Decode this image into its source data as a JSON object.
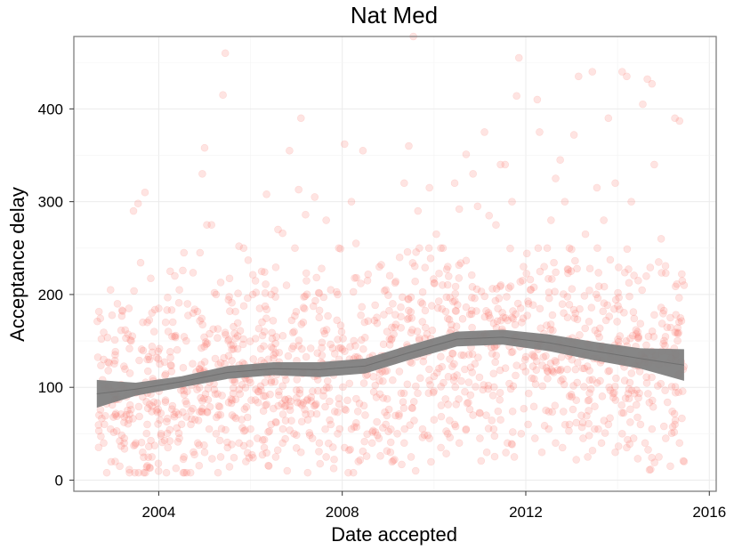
{
  "chart_data": {
    "type": "scatter",
    "title": "Nat Med",
    "xlabel": "Date accepted",
    "ylabel": "Acceptance delay",
    "xlim": [
      2002.15,
      2016.15
    ],
    "ylim": [
      -12,
      478
    ],
    "x_ticks": [
      2004,
      2008,
      2012,
      2016
    ],
    "y_ticks": [
      0,
      100,
      200,
      300,
      400
    ],
    "grid": true,
    "point_color": "#f8766d",
    "point_opacity": 0.2,
    "smooth_color": "#808080",
    "points": [
      [
        2002.75,
        152
      ],
      [
        2002.8,
        130
      ],
      [
        2002.9,
        118
      ],
      [
        2002.95,
        205
      ],
      [
        2003.05,
        135
      ],
      [
        2003.1,
        190
      ],
      [
        2003.2,
        183
      ],
      [
        2003.3,
        90
      ],
      [
        2003.35,
        185
      ],
      [
        2003.4,
        150
      ],
      [
        2003.45,
        290
      ],
      [
        2003.55,
        298
      ],
      [
        2003.7,
        310
      ],
      [
        2003.75,
        170
      ],
      [
        2003.8,
        130
      ],
      [
        2003.9,
        160
      ],
      [
        2004.0,
        185
      ],
      [
        2004.15,
        170
      ],
      [
        2004.25,
        225
      ],
      [
        2004.35,
        220
      ],
      [
        2004.45,
        205
      ],
      [
        2004.55,
        245
      ],
      [
        2004.6,
        150
      ],
      [
        2004.75,
        180
      ],
      [
        2004.9,
        245
      ],
      [
        2004.95,
        330
      ],
      [
        2005.0,
        358
      ],
      [
        2005.05,
        275
      ],
      [
        2005.15,
        275
      ],
      [
        2005.25,
        200
      ],
      [
        2005.35,
        213
      ],
      [
        2005.4,
        415
      ],
      [
        2005.45,
        460
      ],
      [
        2005.55,
        182
      ],
      [
        2005.65,
        158
      ],
      [
        2005.75,
        252
      ],
      [
        2005.85,
        250
      ],
      [
        2005.95,
        237
      ],
      [
        2006.05,
        200
      ],
      [
        2006.2,
        185
      ],
      [
        2006.35,
        308
      ],
      [
        2006.45,
        200
      ],
      [
        2006.6,
        270
      ],
      [
        2006.7,
        266
      ],
      [
        2006.85,
        355
      ],
      [
        2006.95,
        160
      ],
      [
        2007.05,
        313
      ],
      [
        2007.1,
        390
      ],
      [
        2007.2,
        286
      ],
      [
        2007.4,
        305
      ],
      [
        2007.55,
        228
      ],
      [
        2007.65,
        280
      ],
      [
        2007.75,
        205
      ],
      [
        2007.9,
        200
      ],
      [
        2008.05,
        362
      ],
      [
        2008.2,
        300
      ],
      [
        2008.3,
        255
      ],
      [
        2008.45,
        355
      ],
      [
        2008.55,
        215
      ],
      [
        2008.7,
        172
      ],
      [
        2008.85,
        232
      ],
      [
        2008.95,
        205
      ],
      [
        2009.1,
        190
      ],
      [
        2009.25,
        240
      ],
      [
        2009.35,
        320
      ],
      [
        2009.45,
        360
      ],
      [
        2009.55,
        478
      ],
      [
        2009.65,
        290
      ],
      [
        2009.75,
        190
      ],
      [
        2009.9,
        315
      ],
      [
        2010.05,
        265
      ],
      [
        2010.15,
        250
      ],
      [
        2010.3,
        230
      ],
      [
        2010.45,
        320
      ],
      [
        2010.55,
        292
      ],
      [
        2010.7,
        351
      ],
      [
        2010.85,
        330
      ],
      [
        2010.95,
        295
      ],
      [
        2011.1,
        375
      ],
      [
        2011.2,
        285
      ],
      [
        2011.35,
        275
      ],
      [
        2011.45,
        340
      ],
      [
        2011.55,
        340
      ],
      [
        2011.7,
        300
      ],
      [
        2011.8,
        414
      ],
      [
        2011.85,
        455
      ],
      [
        2011.95,
        230
      ],
      [
        2012.1,
        205
      ],
      [
        2012.25,
        410
      ],
      [
        2012.3,
        375
      ],
      [
        2012.4,
        230
      ],
      [
        2012.55,
        280
      ],
      [
        2012.65,
        325
      ],
      [
        2012.75,
        345
      ],
      [
        2012.85,
        300
      ],
      [
        2012.95,
        250
      ],
      [
        2013.05,
        372
      ],
      [
        2013.15,
        435
      ],
      [
        2013.3,
        265
      ],
      [
        2013.45,
        440
      ],
      [
        2013.55,
        315
      ],
      [
        2013.7,
        280
      ],
      [
        2013.8,
        390
      ],
      [
        2013.95,
        320
      ],
      [
        2014.1,
        440
      ],
      [
        2014.2,
        435
      ],
      [
        2014.3,
        300
      ],
      [
        2014.45,
        215
      ],
      [
        2014.55,
        405
      ],
      [
        2014.65,
        432
      ],
      [
        2014.75,
        427
      ],
      [
        2014.8,
        340
      ],
      [
        2014.95,
        260
      ],
      [
        2015.05,
        223
      ],
      [
        2015.15,
        175
      ],
      [
        2015.25,
        390
      ],
      [
        2015.35,
        387
      ],
      [
        2015.4,
        222
      ],
      [
        2015.45,
        210
      ],
      [
        2002.7,
        70
      ],
      [
        2002.8,
        40
      ],
      [
        2002.95,
        55
      ],
      [
        2003.05,
        20
      ],
      [
        2003.15,
        15
      ],
      [
        2003.25,
        45
      ],
      [
        2003.35,
        65
      ],
      [
        2003.5,
        40
      ],
      [
        2003.65,
        30
      ],
      [
        2003.75,
        60
      ],
      [
        2003.85,
        25
      ],
      [
        2003.95,
        75
      ],
      [
        2004.05,
        50
      ],
      [
        2004.2,
        35
      ],
      [
        2004.3,
        80
      ],
      [
        2004.45,
        45
      ],
      [
        2004.55,
        25
      ],
      [
        2004.7,
        60
      ],
      [
        2004.85,
        40
      ],
      [
        2005.0,
        30
      ],
      [
        2005.1,
        55
      ],
      [
        2005.25,
        50
      ],
      [
        2005.35,
        25
      ],
      [
        2005.5,
        35
      ],
      [
        2005.6,
        70
      ],
      [
        2005.75,
        40
      ],
      [
        2005.9,
        20
      ],
      [
        2006.0,
        55
      ],
      [
        2006.15,
        45
      ],
      [
        2006.3,
        35
      ],
      [
        2006.45,
        60
      ],
      [
        2006.55,
        25
      ],
      [
        2006.7,
        40
      ],
      [
        2006.8,
        10
      ],
      [
        2006.95,
        50
      ],
      [
        2007.1,
        30
      ],
      [
        2007.25,
        65
      ],
      [
        2007.35,
        45
      ],
      [
        2007.5,
        40
      ],
      [
        2007.65,
        25
      ],
      [
        2007.75,
        60
      ],
      [
        2007.9,
        50
      ],
      [
        2008.05,
        35
      ],
      [
        2008.2,
        55
      ],
      [
        2008.35,
        20
      ],
      [
        2008.5,
        70
      ],
      [
        2008.65,
        40
      ],
      [
        2008.8,
        45
      ],
      [
        2008.95,
        60
      ],
      [
        2009.05,
        30
      ],
      [
        2009.2,
        50
      ],
      [
        2009.35,
        40
      ],
      [
        2009.5,
        25
      ],
      [
        2009.6,
        10
      ],
      [
        2009.75,
        55
      ],
      [
        2009.9,
        45
      ],
      [
        2010.0,
        65
      ],
      [
        2010.15,
        35
      ],
      [
        2010.3,
        50
      ],
      [
        2010.45,
        60
      ],
      [
        2010.55,
        40
      ],
      [
        2010.7,
        55
      ],
      [
        2010.85,
        70
      ],
      [
        2011.0,
        45
      ],
      [
        2011.15,
        30
      ],
      [
        2011.3,
        55
      ],
      [
        2011.45,
        65
      ],
      [
        2011.6,
        40
      ],
      [
        2011.75,
        25
      ],
      [
        2011.9,
        50
      ],
      [
        2012.05,
        60
      ],
      [
        2012.2,
        45
      ],
      [
        2012.35,
        30
      ],
      [
        2012.5,
        55
      ],
      [
        2012.65,
        40
      ],
      [
        2012.8,
        35
      ],
      [
        2012.95,
        60
      ],
      [
        2013.1,
        22
      ],
      [
        2013.25,
        45
      ],
      [
        2013.35,
        25
      ],
      [
        2013.5,
        55
      ],
      [
        2013.65,
        40
      ],
      [
        2013.8,
        60
      ],
      [
        2013.95,
        30
      ],
      [
        2014.1,
        50
      ],
      [
        2014.2,
        35
      ],
      [
        2014.35,
        45
      ],
      [
        2014.5,
        60
      ],
      [
        2014.6,
        40
      ],
      [
        2014.75,
        55
      ],
      [
        2014.9,
        25
      ],
      [
        2015.05,
        45
      ],
      [
        2015.15,
        15
      ],
      [
        2015.25,
        60
      ],
      [
        2015.35,
        40
      ],
      [
        2015.45,
        20
      ]
    ],
    "smooth": {
      "x": [
        2002.65,
        2003.5,
        2004.5,
        2005.5,
        2006.5,
        2007.5,
        2008.5,
        2009.5,
        2010.5,
        2011.5,
        2012.5,
        2013.5,
        2014.5,
        2015.45
      ],
      "y": [
        93,
        98,
        106,
        116,
        120,
        119,
        123,
        138,
        152,
        154,
        148,
        139,
        131,
        124
      ],
      "lower": [
        78,
        91,
        100,
        109,
        113,
        111,
        115,
        130,
        144,
        146,
        139,
        129,
        120,
        107
      ],
      "upper": [
        108,
        105,
        112,
        123,
        127,
        127,
        131,
        146,
        160,
        162,
        157,
        149,
        142,
        141
      ]
    }
  }
}
